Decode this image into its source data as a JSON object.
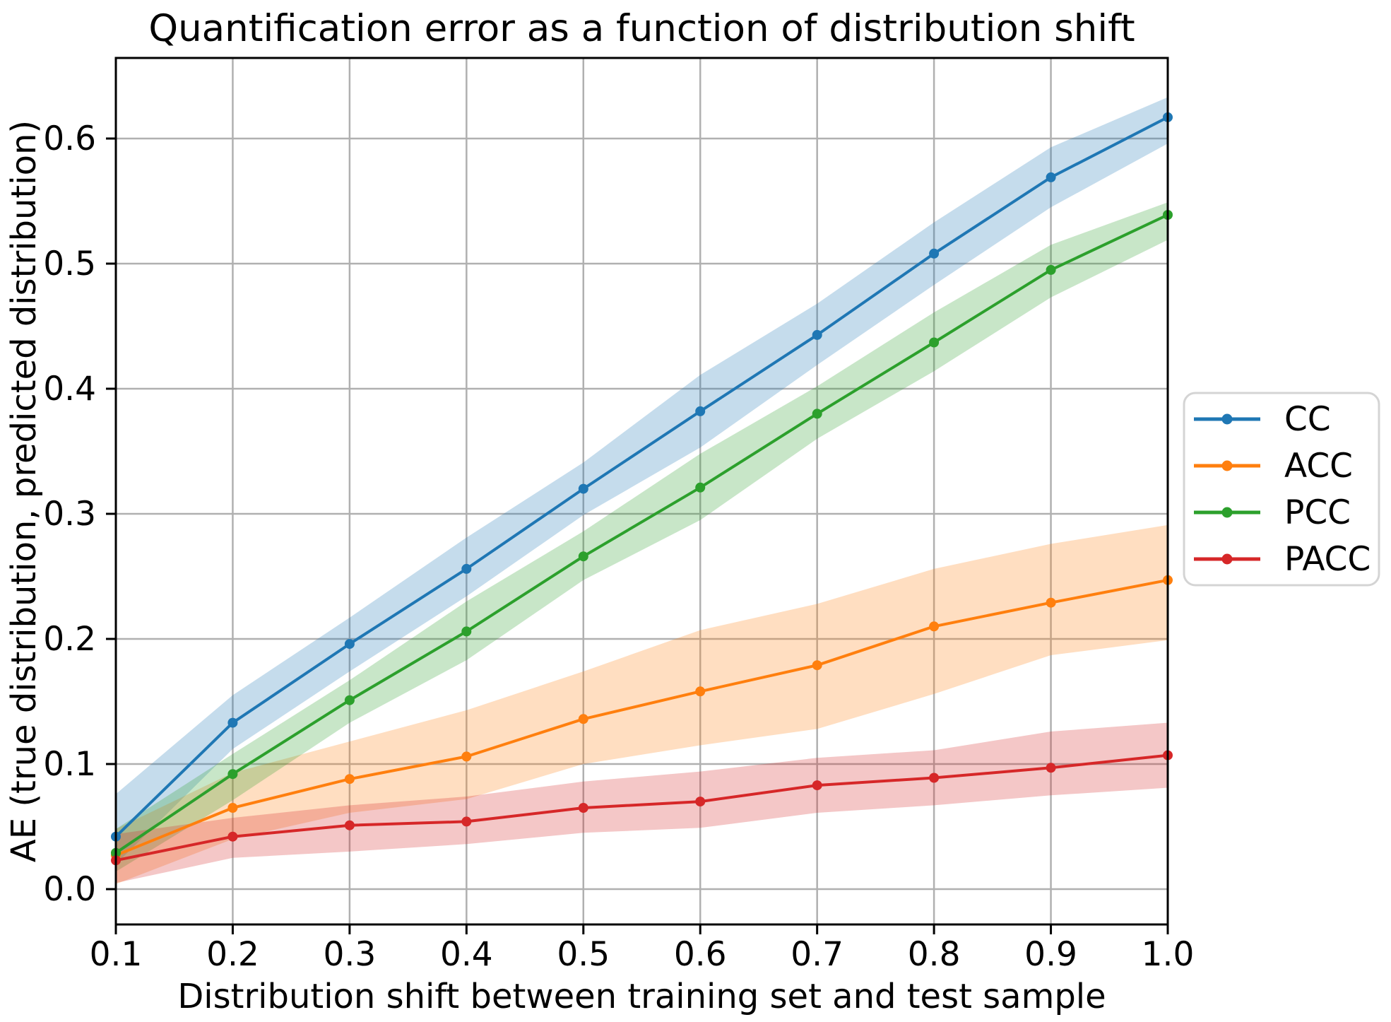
{
  "figure": {
    "background": "#ffffff"
  },
  "chart_data": {
    "type": "line",
    "title": "Quantification error as a function of distribution shift",
    "xlabel": "Distribution shift between training set and test sample",
    "ylabel": "AE (true distribution, predicted distribution)",
    "x": [
      0.1,
      0.2,
      0.3,
      0.4,
      0.5,
      0.6,
      0.7,
      0.8,
      0.9,
      1.0
    ],
    "xticklabels": [
      "0.1",
      "0.2",
      "0.3",
      "0.4",
      "0.5",
      "0.6",
      "0.7",
      "0.8",
      "0.9",
      "1.0"
    ],
    "yticks": [
      0.0,
      0.1,
      0.2,
      0.3,
      0.4,
      0.5,
      0.6
    ],
    "yticklabels": [
      "0.0",
      "0.1",
      "0.2",
      "0.3",
      "0.4",
      "0.5",
      "0.6"
    ],
    "xlim": [
      0.1,
      1.0
    ],
    "ylim": [
      -0.028,
      0.665
    ],
    "grid": true,
    "grid_color": "#b0b0b0",
    "band_opacity": 0.26,
    "legend": {
      "position": "outside-right",
      "labels": [
        "CC",
        "ACC",
        "PCC",
        "PACC"
      ]
    },
    "series": [
      {
        "name": "CC",
        "color": "#1f77b4",
        "values": [
          0.042,
          0.133,
          0.196,
          0.256,
          0.32,
          0.382,
          0.443,
          0.508,
          0.569,
          0.617
        ],
        "band_low": [
          0.02,
          0.112,
          0.174,
          0.234,
          0.299,
          0.353,
          0.419,
          0.483,
          0.545,
          0.596
        ],
        "band_high": [
          0.076,
          0.155,
          0.217,
          0.281,
          0.341,
          0.411,
          0.468,
          0.533,
          0.593,
          0.633
        ]
      },
      {
        "name": "ACC",
        "color": "#ff7f0e",
        "values": [
          0.027,
          0.065,
          0.088,
          0.106,
          0.136,
          0.158,
          0.179,
          0.21,
          0.229,
          0.247
        ],
        "band_low": [
          0.004,
          0.04,
          0.061,
          0.072,
          0.1,
          0.115,
          0.128,
          0.156,
          0.187,
          0.199
        ],
        "band_high": [
          0.048,
          0.093,
          0.118,
          0.143,
          0.174,
          0.207,
          0.228,
          0.256,
          0.276,
          0.291
        ]
      },
      {
        "name": "PCC",
        "color": "#2ca02c",
        "values": [
          0.029,
          0.092,
          0.151,
          0.206,
          0.266,
          0.321,
          0.38,
          0.437,
          0.495,
          0.539
        ],
        "band_low": [
          0.014,
          0.071,
          0.133,
          0.183,
          0.247,
          0.295,
          0.36,
          0.414,
          0.473,
          0.519
        ],
        "band_high": [
          0.048,
          0.108,
          0.167,
          0.23,
          0.286,
          0.348,
          0.402,
          0.461,
          0.515,
          0.549
        ]
      },
      {
        "name": "PACC",
        "color": "#d62728",
        "values": [
          0.023,
          0.042,
          0.051,
          0.054,
          0.065,
          0.07,
          0.083,
          0.089,
          0.097,
          0.107
        ],
        "band_low": [
          0.005,
          0.025,
          0.03,
          0.036,
          0.045,
          0.049,
          0.061,
          0.067,
          0.075,
          0.081
        ],
        "band_high": [
          0.044,
          0.057,
          0.067,
          0.074,
          0.086,
          0.094,
          0.105,
          0.111,
          0.126,
          0.133
        ]
      }
    ]
  }
}
